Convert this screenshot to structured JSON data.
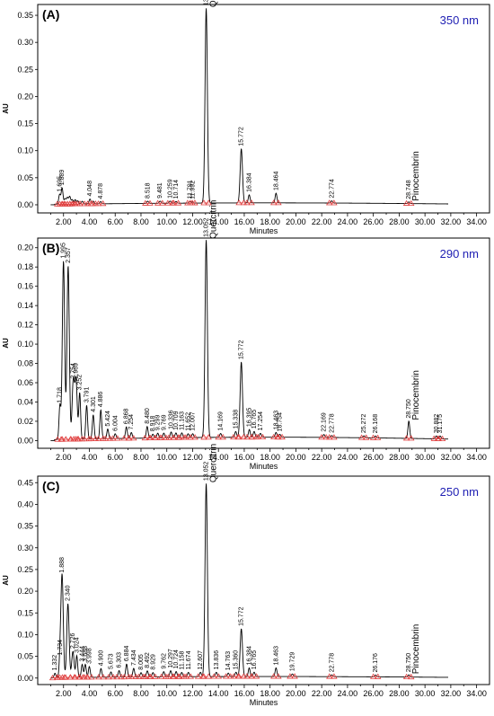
{
  "chart_data": [
    {
      "type": "line",
      "panel_label": "(A)",
      "wavelength": "350 nm",
      "ylabel": "AU",
      "xlabel": "Minutes",
      "xlim": [
        0.0,
        35.0
      ],
      "ylim": [
        -0.015,
        0.37
      ],
      "yticks": [
        0.0,
        0.05,
        0.1,
        0.15,
        0.2,
        0.25,
        0.3,
        0.35
      ],
      "ytick_labels": [
        "0.00",
        "0.05",
        "0.10",
        "0.15",
        "0.20",
        "0.25",
        "0.30",
        "0.35"
      ],
      "xticks": [
        2,
        4,
        6,
        8,
        10,
        12,
        14,
        16,
        18,
        20,
        22,
        24,
        26,
        28,
        30,
        32,
        34
      ],
      "xtick_labels": [
        "2.00",
        "4.00",
        "6.00",
        "8.00",
        "10.00",
        "12.00",
        "14.00",
        "16.00",
        "18.00",
        "20.00",
        "22.00",
        "24.00",
        "26.00",
        "28.00",
        "30.00",
        "32.00",
        "34.00"
      ],
      "peaks": [
        {
          "rt": 1.695,
          "height": 0.018,
          "label": "1.695"
        },
        {
          "rt": 1.889,
          "height": 0.03,
          "label": "1.889"
        },
        {
          "rt": 2.12,
          "height": 0.01,
          "label": ""
        },
        {
          "rt": 2.3,
          "height": 0.012,
          "label": ""
        },
        {
          "rt": 2.48,
          "height": 0.014,
          "label": ""
        },
        {
          "rt": 2.68,
          "height": 0.008,
          "label": ""
        },
        {
          "rt": 2.9,
          "height": 0.008,
          "label": ""
        },
        {
          "rt": 3.1,
          "height": 0.006,
          "label": ""
        },
        {
          "rt": 3.45,
          "height": 0.005,
          "label": ""
        },
        {
          "rt": 4.048,
          "height": 0.009,
          "label": "4.048"
        },
        {
          "rt": 4.3,
          "height": 0.005,
          "label": ""
        },
        {
          "rt": 4.878,
          "height": 0.004,
          "label": "4.878"
        },
        {
          "rt": 8.518,
          "height": 0.004,
          "label": "8.518"
        },
        {
          "rt": 9.481,
          "height": 0.004,
          "label": "9.481"
        },
        {
          "rt": 10.259,
          "height": 0.004,
          "label": "10.259"
        },
        {
          "rt": 10.714,
          "height": 0.003,
          "label": "10.714"
        },
        {
          "rt": 11.791,
          "height": 0.003,
          "label": "11.791"
        },
        {
          "rt": 11.992,
          "height": 0.002,
          "label": "11.992"
        },
        {
          "rt": 13.052,
          "height": 0.36,
          "label": "13.052",
          "compound": "Quercitrin"
        },
        {
          "rt": 15.772,
          "height": 0.1,
          "label": "15.772"
        },
        {
          "rt": 16.384,
          "height": 0.015,
          "label": "16.384"
        },
        {
          "rt": 18.464,
          "height": 0.018,
          "label": "18.464"
        },
        {
          "rt": 22.774,
          "height": 0.004,
          "label": "22.774"
        },
        {
          "rt": 28.748,
          "height": 0.003,
          "label": "28.748",
          "compound": "Pinocembrin"
        }
      ]
    },
    {
      "type": "line",
      "panel_label": "(B)",
      "wavelength": "290 nm",
      "ylabel": "AU",
      "xlabel": "Minutes",
      "xlim": [
        0.0,
        35.0
      ],
      "ylim": [
        -0.008,
        0.21
      ],
      "yticks": [
        0.0,
        0.02,
        0.04,
        0.06,
        0.08,
        0.1,
        0.12,
        0.14,
        0.16,
        0.18,
        0.2
      ],
      "ytick_labels": [
        "0.00",
        "0.02",
        "0.04",
        "0.06",
        "0.08",
        "0.10",
        "0.12",
        "0.14",
        "0.16",
        "0.18",
        "0.20"
      ],
      "xticks": [
        2,
        4,
        6,
        8,
        10,
        12,
        14,
        16,
        18,
        20,
        22,
        24,
        26,
        28,
        30,
        32,
        34
      ],
      "xtick_labels": [
        "2.00",
        "4.00",
        "6.00",
        "8.00",
        "10.00",
        "12.00",
        "14.00",
        "16.00",
        "18.00",
        "20.00",
        "22.00",
        "24.00",
        "26.00",
        "28.00",
        "30.00",
        "32.00",
        "34.00"
      ],
      "peaks": [
        {
          "rt": 1.718,
          "height": 0.035,
          "label": "1.718"
        },
        {
          "rt": 1.995,
          "height": 0.185,
          "label": "1.995"
        },
        {
          "rt": 2.357,
          "height": 0.18,
          "label": "2.357"
        },
        {
          "rt": 2.754,
          "height": 0.06,
          "label": "2.754"
        },
        {
          "rt": 2.969,
          "height": 0.06,
          "label": "2.969"
        },
        {
          "rt": 3.252,
          "height": 0.048,
          "label": "3.252"
        },
        {
          "rt": 3.791,
          "height": 0.035,
          "label": "3.791"
        },
        {
          "rt": 4.301,
          "height": 0.025,
          "label": "4.301"
        },
        {
          "rt": 4.886,
          "height": 0.03,
          "label": "4.886"
        },
        {
          "rt": 5.424,
          "height": 0.01,
          "label": "5.424"
        },
        {
          "rt": 6.004,
          "height": 0.005,
          "label": "6.004"
        },
        {
          "rt": 6.868,
          "height": 0.012,
          "label": "6.868"
        },
        {
          "rt": 7.254,
          "height": 0.006,
          "label": "7.254"
        },
        {
          "rt": 8.48,
          "height": 0.012,
          "label": "8.480"
        },
        {
          "rt": 8.918,
          "height": 0.004,
          "label": "8.918"
        },
        {
          "rt": 9.299,
          "height": 0.005,
          "label": "9.299"
        },
        {
          "rt": 9.769,
          "height": 0.005,
          "label": "9.769"
        },
        {
          "rt": 10.336,
          "height": 0.006,
          "label": "10.336"
        },
        {
          "rt": 10.709,
          "height": 0.005,
          "label": "10.709"
        },
        {
          "rt": 11.163,
          "height": 0.005,
          "label": "11.163"
        },
        {
          "rt": 11.652,
          "height": 0.004,
          "label": "11.652"
        },
        {
          "rt": 12.007,
          "height": 0.004,
          "label": "12.007"
        },
        {
          "rt": 13.052,
          "height": 0.205,
          "label": "13.052",
          "compound": "Quercitrin"
        },
        {
          "rt": 14.169,
          "height": 0.004,
          "label": "14.169"
        },
        {
          "rt": 15.338,
          "height": 0.006,
          "label": "15.338"
        },
        {
          "rt": 15.772,
          "height": 0.078,
          "label": "15.772"
        },
        {
          "rt": 16.395,
          "height": 0.008,
          "label": "16.395"
        },
        {
          "rt": 16.765,
          "height": 0.006,
          "label": "16.765"
        },
        {
          "rt": 17.254,
          "height": 0.004,
          "label": "17.254"
        },
        {
          "rt": 18.463,
          "height": 0.005,
          "label": "18.463"
        },
        {
          "rt": 18.754,
          "height": 0.003,
          "label": "18.754"
        },
        {
          "rt": 22.169,
          "height": 0.003,
          "label": "22.169"
        },
        {
          "rt": 22.778,
          "height": 0.002,
          "label": "22.778"
        },
        {
          "rt": 25.272,
          "height": 0.002,
          "label": "25.272"
        },
        {
          "rt": 26.168,
          "height": 0.002,
          "label": "26.168"
        },
        {
          "rt": 28.75,
          "height": 0.018,
          "label": "28.750",
          "compound": "Pinocembrin"
        },
        {
          "rt": 30.882,
          "height": 0.003,
          "label": "30.882"
        },
        {
          "rt": 31.175,
          "height": 0.003,
          "label": "31.175"
        }
      ]
    },
    {
      "type": "line",
      "panel_label": "(C)",
      "wavelength": "250 nm",
      "ylabel": "AU",
      "xlabel": "Minutes",
      "xlim": [
        0.0,
        35.0
      ],
      "ylim": [
        -0.015,
        0.465
      ],
      "yticks": [
        0.0,
        0.05,
        0.1,
        0.15,
        0.2,
        0.25,
        0.3,
        0.35,
        0.4,
        0.45
      ],
      "ytick_labels": [
        "0.00",
        "0.05",
        "0.10",
        "0.15",
        "0.20",
        "0.25",
        "0.30",
        "0.35",
        "0.40",
        "0.45"
      ],
      "xticks": [
        2,
        4,
        6,
        8,
        10,
        12,
        14,
        16,
        18,
        20,
        22,
        24,
        26,
        28,
        30,
        32,
        34
      ],
      "xtick_labels": [
        "2.00",
        "4.00",
        "6.00",
        "8.00",
        "10.00",
        "12.00",
        "14.00",
        "16.00",
        "18.00",
        "20.00",
        "22.00",
        "24.00",
        "26.00",
        "28.00",
        "30.00",
        "32.00",
        "34.00"
      ],
      "peaks": [
        {
          "rt": 1.332,
          "height": 0.01,
          "label": "1.332"
        },
        {
          "rt": 1.734,
          "height": 0.045,
          "label": "1.734"
        },
        {
          "rt": 1.888,
          "height": 0.235,
          "label": "1.888"
        },
        {
          "rt": 2.34,
          "height": 0.17,
          "label": "2.340"
        },
        {
          "rt": 2.726,
          "height": 0.06,
          "label": "2.726"
        },
        {
          "rt": 3.024,
          "height": 0.05,
          "label": "3.024"
        },
        {
          "rt": 3.444,
          "height": 0.03,
          "label": "3.444"
        },
        {
          "rt": 3.688,
          "height": 0.03,
          "label": "3.688"
        },
        {
          "rt": 3.998,
          "height": 0.025,
          "label": "3.998"
        },
        {
          "rt": 4.9,
          "height": 0.02,
          "label": "4.900"
        },
        {
          "rt": 5.673,
          "height": 0.012,
          "label": "5.673"
        },
        {
          "rt": 6.303,
          "height": 0.015,
          "label": "6.303"
        },
        {
          "rt": 6.884,
          "height": 0.03,
          "label": "6.884"
        },
        {
          "rt": 7.434,
          "height": 0.02,
          "label": "7.434"
        },
        {
          "rt": 8.005,
          "height": 0.01,
          "label": "8.005"
        },
        {
          "rt": 8.492,
          "height": 0.014,
          "label": "8.492"
        },
        {
          "rt": 8.929,
          "height": 0.01,
          "label": "8.929"
        },
        {
          "rt": 9.762,
          "height": 0.012,
          "label": "9.762"
        },
        {
          "rt": 10.297,
          "height": 0.014,
          "label": "10.297"
        },
        {
          "rt": 10.724,
          "height": 0.012,
          "label": "10.724"
        },
        {
          "rt": 11.158,
          "height": 0.01,
          "label": "11.158"
        },
        {
          "rt": 11.674,
          "height": 0.01,
          "label": "11.674"
        },
        {
          "rt": 12.607,
          "height": 0.01,
          "label": "12.607"
        },
        {
          "rt": 13.052,
          "height": 0.445,
          "label": "13.052",
          "compound": "Quercitrin"
        },
        {
          "rt": 13.836,
          "height": 0.01,
          "label": "13.836"
        },
        {
          "rt": 14.763,
          "height": 0.008,
          "label": "14.763"
        },
        {
          "rt": 15.36,
          "height": 0.01,
          "label": "15.360"
        },
        {
          "rt": 15.772,
          "height": 0.11,
          "label": "15.772"
        },
        {
          "rt": 16.384,
          "height": 0.02,
          "label": "16.384"
        },
        {
          "rt": 16.765,
          "height": 0.01,
          "label": "16.765"
        },
        {
          "rt": 18.463,
          "height": 0.02,
          "label": "18.463"
        },
        {
          "rt": 19.729,
          "height": 0.006,
          "label": "19.729"
        },
        {
          "rt": 22.778,
          "height": 0.004,
          "label": "22.778"
        },
        {
          "rt": 26.176,
          "height": 0.004,
          "label": "26.176"
        },
        {
          "rt": 28.75,
          "height": 0.005,
          "label": "28.750",
          "compound": "Pinocembrin"
        }
      ]
    }
  ]
}
